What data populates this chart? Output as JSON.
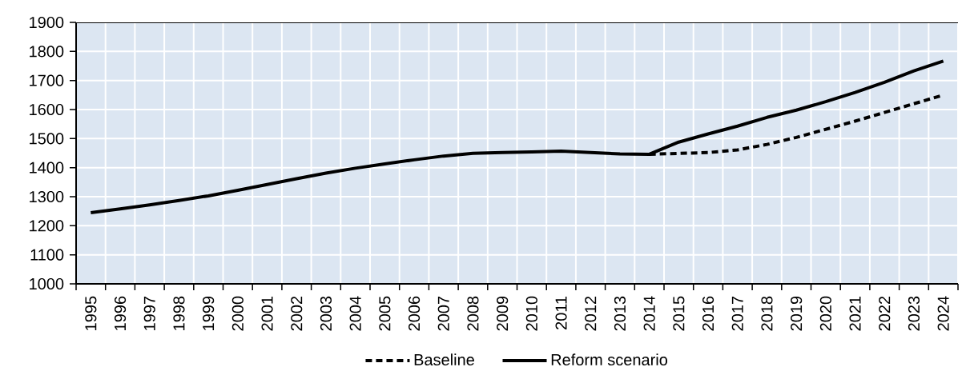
{
  "chart_data": {
    "type": "line",
    "categories": [
      "1995",
      "1996",
      "1997",
      "1998",
      "1999",
      "2000",
      "2001",
      "2002",
      "2003",
      "2004",
      "2005",
      "2006",
      "2007",
      "2008",
      "2009",
      "2010",
      "2011",
      "2012",
      "2013",
      "2014",
      "2015",
      "2016",
      "2017",
      "2018",
      "2019",
      "2020",
      "2021",
      "2022",
      "2023",
      "2024"
    ],
    "series": [
      {
        "name": "Baseline",
        "color": "#000000",
        "line_style": "dashed",
        "values": [
          null,
          null,
          null,
          null,
          null,
          null,
          null,
          null,
          null,
          null,
          null,
          null,
          null,
          null,
          null,
          null,
          null,
          null,
          null,
          1446,
          1449,
          1452,
          1461,
          1480,
          1504,
          1532,
          1560,
          1590,
          1620,
          1650
        ]
      },
      {
        "name": "Reform scenario",
        "color": "#000000",
        "line_style": "solid",
        "values": [
          1245,
          1258,
          1272,
          1287,
          1303,
          1322,
          1342,
          1362,
          1381,
          1398,
          1413,
          1427,
          1440,
          1449,
          1452,
          1454,
          1457,
          1452,
          1447,
          1446,
          1488,
          1516,
          1543,
          1573,
          1598,
          1627,
          1659,
          1694,
          1733,
          1767
        ]
      }
    ],
    "ylim": [
      1000,
      1900
    ],
    "yticks": [
      1000,
      1100,
      1200,
      1300,
      1400,
      1500,
      1600,
      1700,
      1800,
      1900
    ],
    "grid": true,
    "legend": "bottom"
  }
}
